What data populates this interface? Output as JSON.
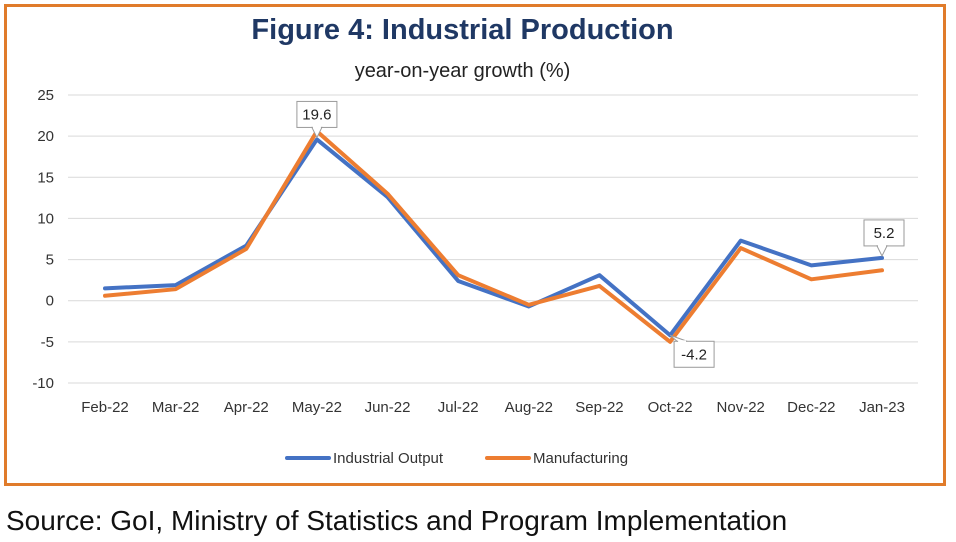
{
  "chart_data": {
    "type": "line",
    "title": "Figure 4: Industrial Production",
    "subtitle": "year-on-year growth (%)",
    "categories": [
      "Feb-22",
      "Mar-22",
      "Apr-22",
      "May-22",
      "Jun-22",
      "Jul-22",
      "Aug-22",
      "Sep-22",
      "Oct-22",
      "Nov-22",
      "Dec-22",
      "Jan-23"
    ],
    "series": [
      {
        "name": "Industrial Output",
        "color": "#4472c4",
        "values": [
          1.5,
          1.9,
          6.7,
          19.6,
          12.6,
          2.4,
          -0.7,
          3.1,
          -4.2,
          7.3,
          4.3,
          5.2
        ]
      },
      {
        "name": "Manufacturing",
        "color": "#ed7d31",
        "values": [
          0.6,
          1.4,
          6.3,
          20.6,
          13.0,
          3.1,
          -0.5,
          1.8,
          -5.0,
          6.4,
          2.6,
          3.7
        ]
      }
    ],
    "data_labels": [
      {
        "series": "Industrial Output",
        "category": "May-22",
        "text": "19.6"
      },
      {
        "series": "Industrial Output",
        "category": "Oct-22",
        "text": "-4.2"
      },
      {
        "series": "Industrial Output",
        "category": "Jan-23",
        "text": "5.2"
      }
    ],
    "ylim": [
      -10,
      25
    ],
    "yticks": [
      "-10",
      "-5",
      "0",
      "5",
      "10",
      "15",
      "20",
      "25"
    ],
    "grid": true,
    "legend_position": "bottom"
  },
  "source": "Source: GoI, Ministry of Statistics and Program Implementation",
  "frame_color": "#e07b2a",
  "title_color": "#1f3864"
}
